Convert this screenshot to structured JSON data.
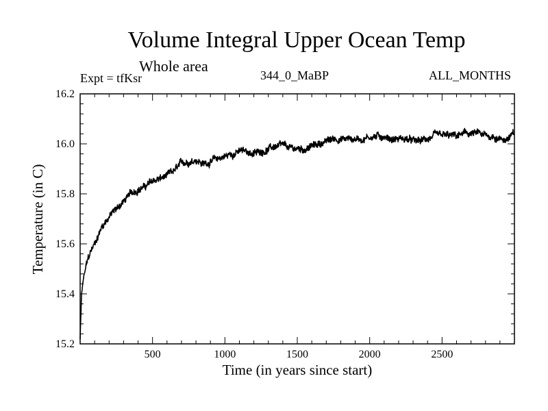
{
  "chart_data": {
    "type": "line",
    "title": "Volume Integral Upper Ocean Temp",
    "subtitle": "Whole area",
    "experiment_label": "Expt = tfKsr",
    "period_label": "344_0_MaBP",
    "months_label": "ALL_MONTHS",
    "xlabel": "Time (in years since start)",
    "ylabel": "Temperature (in C)",
    "xlim": [
      0,
      3000
    ],
    "ylim": [
      15.2,
      16.2
    ],
    "x_ticks": [
      "500",
      "1000",
      "1500",
      "2000",
      "2500"
    ],
    "y_ticks": [
      "15.2",
      "15.4",
      "15.6",
      "15.8",
      "16.0",
      "16.2"
    ],
    "line_color": "#000000",
    "series": [
      {
        "name": "Volume integral upper ocean temperature",
        "x": [
          0,
          10,
          25,
          50,
          75,
          100,
          150,
          200,
          250,
          300,
          350,
          400,
          450,
          500,
          550,
          600,
          650,
          700,
          750,
          800,
          850,
          900,
          950,
          1000,
          1050,
          1100,
          1150,
          1200,
          1250,
          1300,
          1350,
          1400,
          1450,
          1500,
          1550,
          1600,
          1650,
          1700,
          1750,
          1800,
          1850,
          1900,
          1950,
          2000,
          2050,
          2100,
          2150,
          2200,
          2250,
          2300,
          2350,
          2400,
          2450,
          2500,
          2550,
          2600,
          2650,
          2700,
          2750,
          2800,
          2850,
          2900,
          2950,
          3000
        ],
        "values": [
          15.22,
          15.4,
          15.47,
          15.53,
          15.57,
          15.6,
          15.67,
          15.71,
          15.74,
          15.77,
          15.8,
          15.82,
          15.83,
          15.85,
          15.86,
          15.87,
          15.89,
          15.92,
          15.93,
          15.94,
          15.92,
          15.93,
          15.94,
          15.95,
          15.96,
          15.97,
          15.97,
          15.96,
          15.97,
          15.98,
          15.99,
          15.99,
          15.98,
          15.98,
          15.98,
          15.99,
          16.0,
          16.01,
          16.02,
          16.02,
          16.02,
          16.02,
          16.02,
          16.03,
          16.03,
          16.03,
          16.02,
          16.02,
          16.02,
          16.01,
          16.01,
          16.02,
          16.03,
          16.03,
          16.03,
          16.03,
          16.04,
          16.04,
          16.04,
          16.03,
          16.03,
          16.02,
          16.02,
          16.04
        ]
      }
    ]
  }
}
